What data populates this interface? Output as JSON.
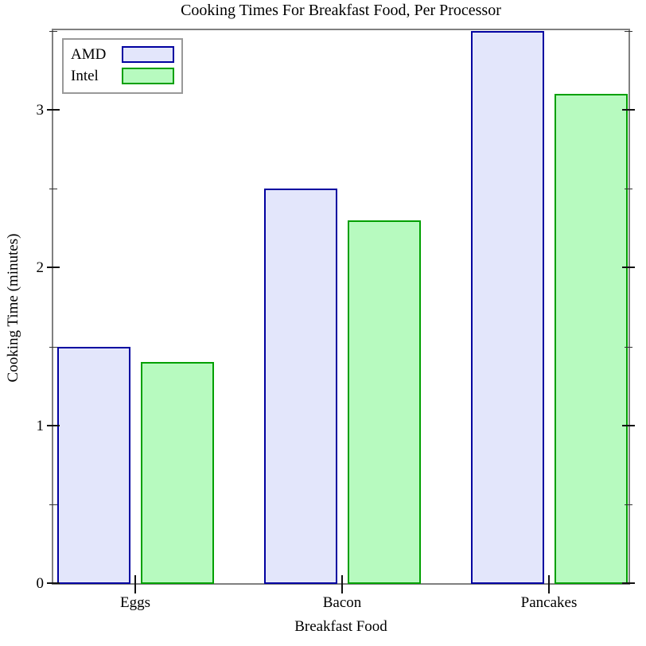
{
  "title": "Cooking Times For Breakfast Food, Per Processor",
  "axes": {
    "ylabel": "Cooking Time (minutes)",
    "xlabel": "Breakfast Food"
  },
  "legend": {
    "position": "top-left",
    "items": [
      {
        "label": "AMD"
      },
      {
        "label": "Intel"
      }
    ]
  },
  "colors": {
    "spine_gray": "#808080",
    "tick_black": "#111111",
    "amd_fill": "#E3E6FB",
    "amd_border": "#0000A0",
    "intel_fill": "#B7FABF",
    "intel_border": "#00A000",
    "legend_border": "#999999"
  },
  "chart_data": {
    "type": "bar",
    "title": "Cooking Times For Breakfast Food, Per Processor",
    "categories": [
      "Eggs",
      "Bacon",
      "Pancakes"
    ],
    "series": [
      {
        "name": "AMD",
        "values": [
          1.5,
          2.5,
          3.5
        ],
        "fill": "#E3E6FB",
        "border": "#0000A0"
      },
      {
        "name": "Intel",
        "values": [
          1.4,
          2.3,
          3.1
        ],
        "fill": "#B7FABF",
        "border": "#00A000"
      }
    ],
    "xlabel": "Breakfast Food",
    "ylabel": "Cooking Time (minutes)",
    "ylim": [
      0,
      3.5
    ],
    "y_major_ticks": [
      0,
      1,
      2,
      3
    ],
    "y_minor_ticks": [
      0.5,
      1.5,
      2.5,
      3.5
    ],
    "grid": false,
    "legend_position": "top-left"
  }
}
